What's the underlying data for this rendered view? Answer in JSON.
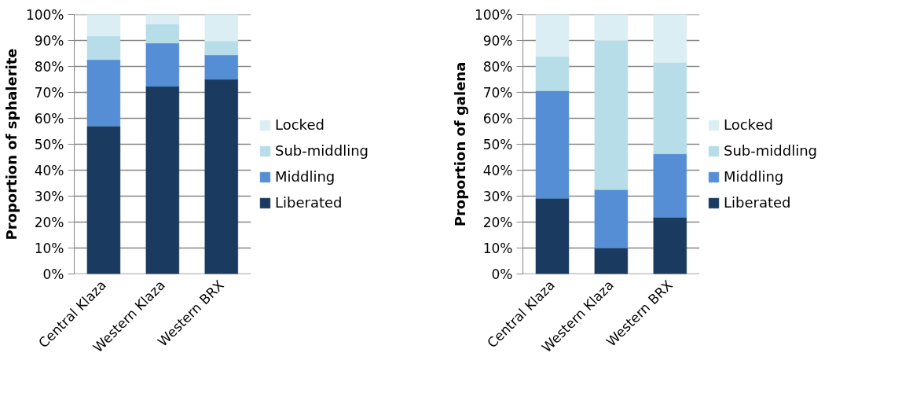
{
  "chart_data": [
    {
      "type": "bar",
      "stacked": true,
      "ylabel": "Proportion of sphalerite",
      "categories": [
        "Central Klaza",
        "Western Klaza",
        "Western BRX"
      ],
      "ylim": [
        0,
        100
      ],
      "yticks": [
        {
          "value": 0,
          "label": "0%"
        },
        {
          "value": 10,
          "label": "10%"
        },
        {
          "value": 20,
          "label": "20%"
        },
        {
          "value": 30,
          "label": "30%"
        },
        {
          "value": 40,
          "label": "40%"
        },
        {
          "value": 50,
          "label": "50%"
        },
        {
          "value": 60,
          "label": "60%"
        },
        {
          "value": 70,
          "label": "70%"
        },
        {
          "value": 80,
          "label": "80%"
        },
        {
          "value": 90,
          "label": "90%"
        },
        {
          "value": 100,
          "label": "100%"
        }
      ],
      "grid": "y",
      "legend": "right",
      "series": [
        {
          "name": "Liberated",
          "color": "#1b3a5f",
          "values": [
            57,
            72.3,
            75
          ]
        },
        {
          "name": "Middling",
          "color": "#558ed5",
          "values": [
            25.6,
            16.7,
            9.4
          ]
        },
        {
          "name": "Sub-middling",
          "color": "#b7dde8",
          "values": [
            9.1,
            7.3,
            5.4
          ]
        },
        {
          "name": "Locked",
          "color": "#dbeef4",
          "values": [
            8.3,
            3.7,
            10.2
          ]
        }
      ]
    },
    {
      "type": "bar",
      "stacked": true,
      "ylabel": "Proportion of galena",
      "categories": [
        "Central Klaza",
        "Western Klaza",
        "Western BRX"
      ],
      "ylim": [
        0,
        100
      ],
      "yticks": [
        {
          "value": 0,
          "label": "0%"
        },
        {
          "value": 10,
          "label": "10%"
        },
        {
          "value": 20,
          "label": "20%"
        },
        {
          "value": 30,
          "label": "30%"
        },
        {
          "value": 40,
          "label": "40%"
        },
        {
          "value": 50,
          "label": "50%"
        },
        {
          "value": 60,
          "label": "60%"
        },
        {
          "value": 70,
          "label": "70%"
        },
        {
          "value": 80,
          "label": "80%"
        },
        {
          "value": 90,
          "label": "90%"
        },
        {
          "value": 100,
          "label": "100%"
        }
      ],
      "grid": "y",
      "legend": "right",
      "series": [
        {
          "name": "Liberated",
          "color": "#1b3a5f",
          "values": [
            29.2,
            10,
            21.8
          ]
        },
        {
          "name": "Middling",
          "color": "#558ed5",
          "values": [
            41.4,
            22.5,
            24.5
          ]
        },
        {
          "name": "Sub-middling",
          "color": "#b7dde8",
          "values": [
            13.2,
            57.4,
            35.2
          ]
        },
        {
          "name": "Locked",
          "color": "#dbeef4",
          "values": [
            16.2,
            10.1,
            18.5
          ]
        }
      ]
    }
  ]
}
